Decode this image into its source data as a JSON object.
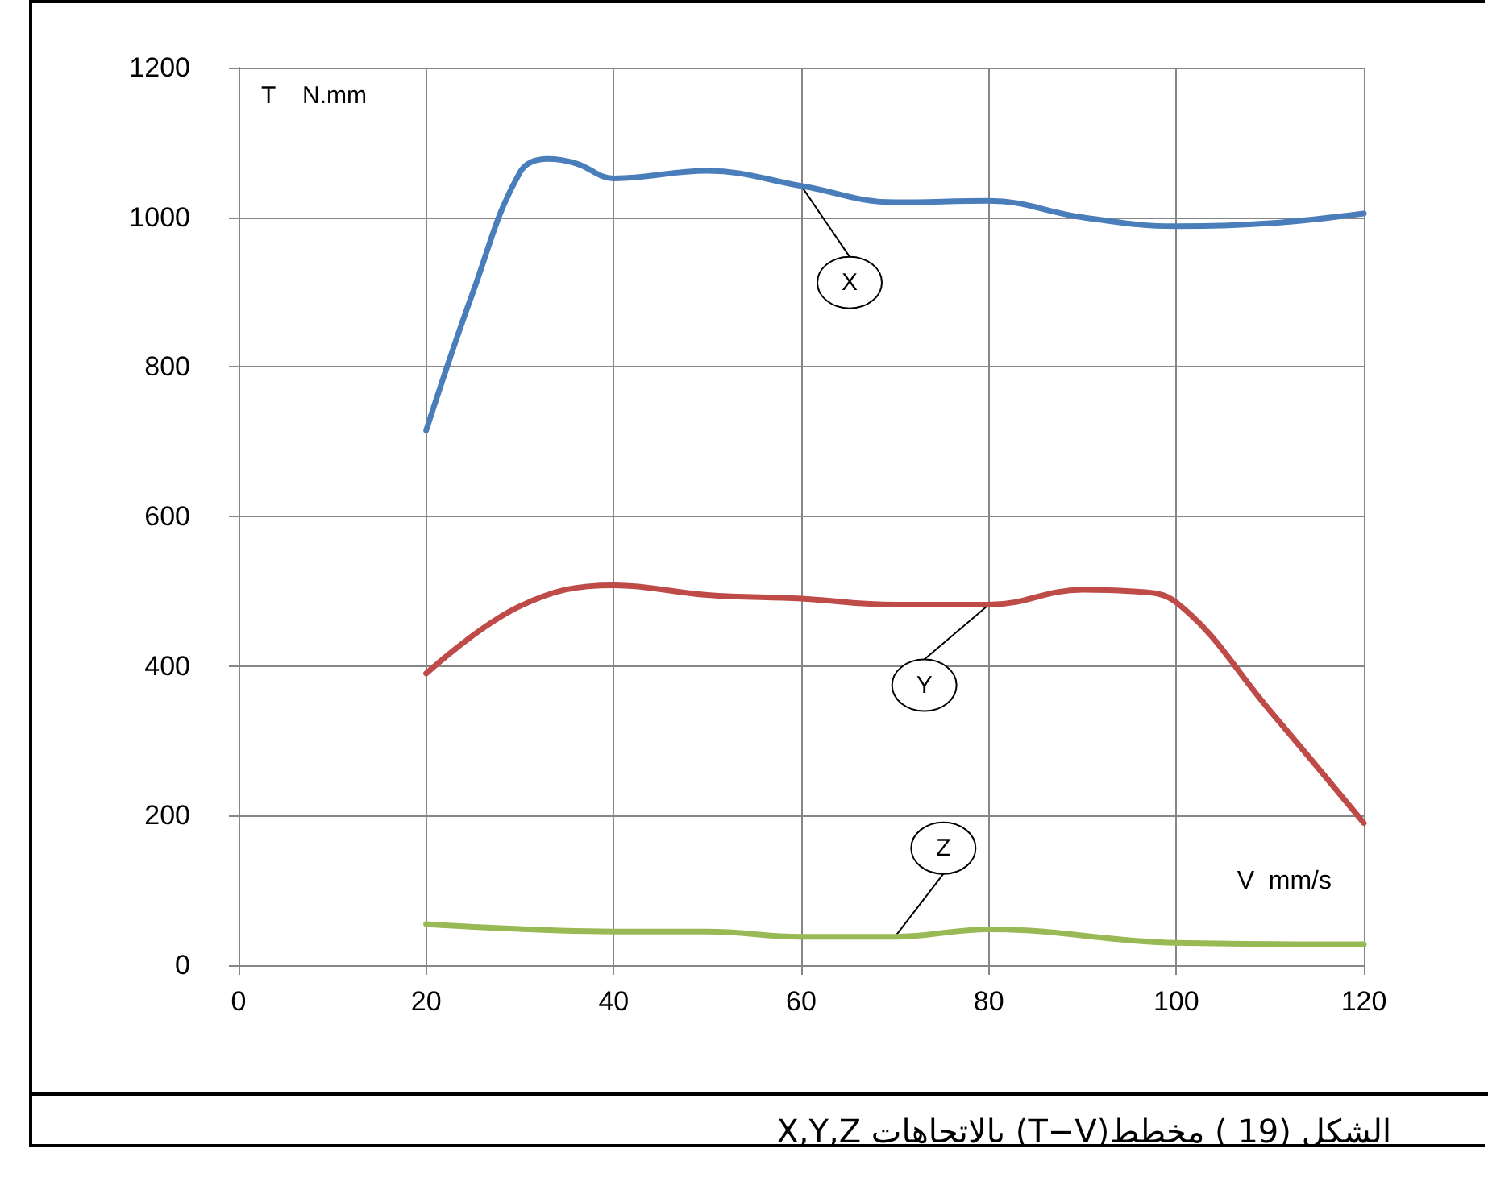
{
  "chart_data": {
    "type": "line",
    "ylabel": "T    N.mm",
    "xlabel": "V  mm/s",
    "annotations": [
      "الشكل (19 ) مخطط(T−V) بالاتجاهات X,Y,Z"
    ],
    "xlim": [
      0,
      120
    ],
    "xticks": [
      0,
      20,
      40,
      60,
      80,
      100,
      120
    ],
    "ylim": [
      0,
      1200
    ],
    "yticks": [
      0,
      200,
      400,
      600,
      800,
      1000,
      1200
    ],
    "grid": true,
    "legend": false,
    "marker": "none",
    "line_style": "solid",
    "series": [
      {
        "name": "X",
        "color": "#4a7ebb",
        "x": [
          20,
          25,
          30,
          33,
          36,
          40,
          50,
          60,
          70,
          80,
          90,
          100,
          110,
          120
        ],
        "values": [
          715,
          900,
          1060,
          1078,
          1072,
          1052,
          1062,
          1042,
          1020,
          1022,
          1000,
          988,
          992,
          1005
        ]
      },
      {
        "name": "Y",
        "color": "#be4b48",
        "x": [
          20,
          30,
          40,
          50,
          60,
          70,
          80,
          90,
          95,
          100,
          110,
          120
        ],
        "values": [
          390,
          480,
          508,
          495,
          490,
          482,
          482,
          502,
          500,
          485,
          340,
          190
        ]
      },
      {
        "name": "Z",
        "color": "#98b954",
        "x": [
          20,
          40,
          50,
          60,
          70,
          80,
          100,
          120
        ],
        "values": [
          55,
          45,
          45,
          38,
          38,
          48,
          30,
          28
        ]
      }
    ]
  }
}
